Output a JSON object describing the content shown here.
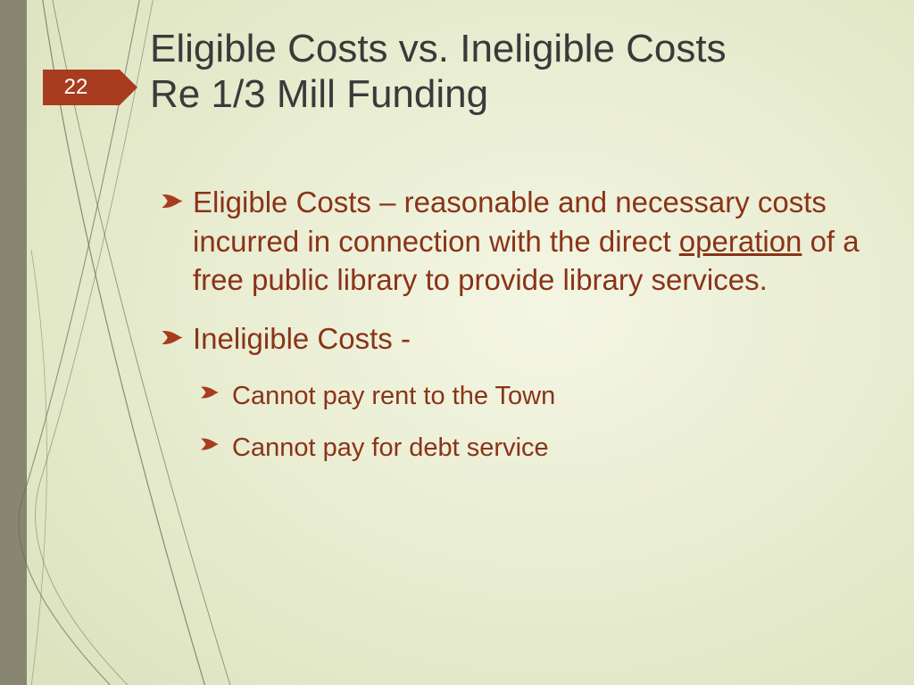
{
  "page_number": "22",
  "title_line1": "Eligible Costs vs. Ineligible Costs",
  "title_line2": "Re 1/3 Mill Funding",
  "colors": {
    "accent": "#a83c1f",
    "bullet": "#a83c1f",
    "text_body": "#8a3318",
    "title": "#3a3a3a",
    "left_bar": "#888570",
    "bg_inner": "#f4f6e4",
    "bg_outer": "#d8dfb8"
  },
  "bullets": [
    {
      "level": 1,
      "segments": [
        {
          "text": "Eligible Costs – reasonable and necessary costs incurred in connection with the direct "
        },
        {
          "text": "operation",
          "underline": true
        },
        {
          "text": " of a free public library to provide library services."
        }
      ]
    },
    {
      "level": 1,
      "segments": [
        {
          "text": "Ineligible Costs -"
        }
      ]
    },
    {
      "level": 2,
      "segments": [
        {
          "text": "Cannot pay rent to the Town"
        }
      ]
    },
    {
      "level": 2,
      "segments": [
        {
          "text": "Cannot pay for debt service"
        }
      ]
    }
  ]
}
